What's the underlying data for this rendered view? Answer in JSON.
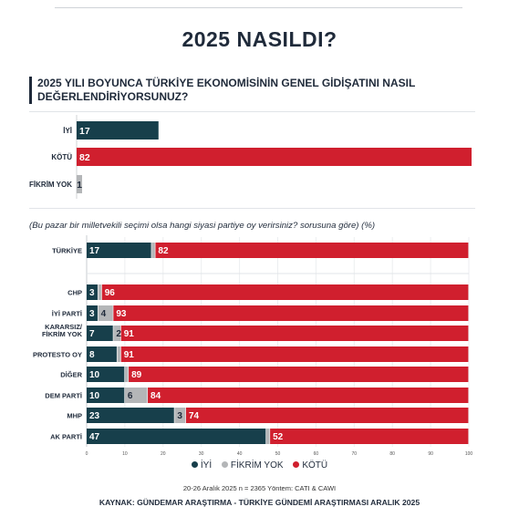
{
  "title": "2025 NASILDI?",
  "question": "2025 YILI BOYUNCA TÜRKİYE EKONOMİSİNİN GENEL GİDİŞATINI NASIL DEĞERLENDİRİYORSUNUZ?",
  "sub_question": "(Bu pazar bir milletvekili seçimi olsa hangi siyasi partiye oy verirsiniz? sorusuna göre) (%)",
  "legend": [
    {
      "label": "İYİ",
      "color": "#173f4b"
    },
    {
      "label": "FİKRİM YOK",
      "color": "#b4b6b8"
    },
    {
      "label": "KÖTÜ",
      "color": "#d01f2e"
    }
  ],
  "method_note": "20-26 Aralık 2025 n = 2365 Yöntem: CATI & CAWI",
  "source": "KAYNAK: GÜNDEMAR ARAŞTIRMA - TÜRKİYE GÜNDEMİ ARAŞTIRMASI ARALIK 2025",
  "chart_data": [
    {
      "type": "bar",
      "orientation": "horizontal",
      "categories": [
        "İYİ",
        "KÖTÜ",
        "FİKRİM YOK"
      ],
      "values": [
        17,
        82,
        1
      ],
      "colors": [
        "#173f4b",
        "#d01f2e",
        "#b4b6b8"
      ],
      "xlim": [
        0,
        82
      ]
    },
    {
      "type": "bar",
      "orientation": "horizontal",
      "stacked": true,
      "categories": [
        "TÜRKİYE",
        "CHP",
        "İYİ PARTİ",
        "KARARSIZ/\nFİKRİM YOK",
        "PROTESTO OY",
        "DİĞER",
        "DEM PARTİ",
        "MHP",
        "AK PARTİ"
      ],
      "series": [
        {
          "name": "İYİ",
          "values": [
            17,
            3,
            3,
            7,
            8,
            10,
            10,
            23,
            47
          ],
          "labels": [
            "17",
            "3",
            "3",
            "7",
            "8",
            "10",
            "10",
            "23",
            "47"
          ]
        },
        {
          "name": "FİKRİM YOK",
          "values": [
            1,
            1,
            4,
            2,
            1,
            1,
            6,
            3,
            1
          ],
          "labels": [
            "",
            "",
            "4",
            "2",
            "",
            "",
            "6",
            "3",
            ""
          ]
        },
        {
          "name": "KÖTÜ",
          "values": [
            82,
            96,
            93,
            91,
            91,
            89,
            84,
            74,
            52
          ],
          "labels": [
            "82",
            "96",
            "93",
            "91",
            "91",
            "89",
            "84",
            "74",
            "52"
          ]
        }
      ],
      "xlim": [
        0,
        100
      ],
      "xticks": [
        "0",
        "10",
        "20",
        "30",
        "40",
        "50",
        "60",
        "70",
        "80",
        "90",
        "100"
      ],
      "legend_position": "bottom"
    }
  ]
}
